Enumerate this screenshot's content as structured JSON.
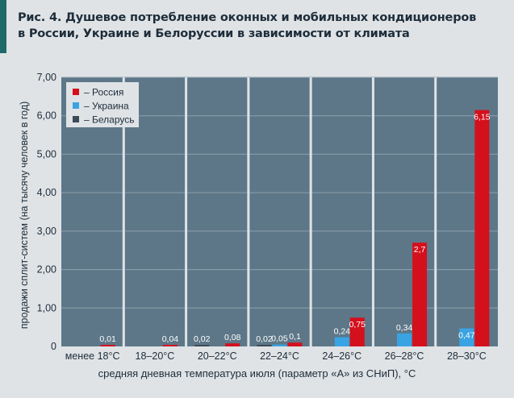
{
  "title": {
    "line1": "Рис. 4. Душевое потребление оконных и мобильных кондиционеров",
    "line2": "в России, Украине и Белоруссии в зависимости от климата"
  },
  "colors": {
    "background": "#dfe3e6",
    "plot_bg": "#5d7788",
    "accent": "#1f6a68"
  },
  "chart_data": {
    "type": "bar",
    "title": "Рис. 4. Душевое потребление оконных и мобильных кондиционеров в России, Украине и Белоруссии в зависимости от климата",
    "xlabel": "средняя дневная температура июля (параметр «А» из СНиП), °С",
    "ylabel": "продажи сплит-систем (на тысячу человек в год)",
    "ylim": [
      0,
      7
    ],
    "y_ticks": [
      "0",
      "1,00",
      "2,00",
      "3,00",
      "4,00",
      "5,00",
      "6,00",
      "7,00"
    ],
    "grid": "horizontal",
    "legend_position": "top-left",
    "categories": [
      "менее 18°С",
      "18–20°С",
      "20–22°С",
      "22–24°С",
      "24–26°С",
      "26–28°С",
      "28–30°С"
    ],
    "series": [
      {
        "name": "– Беларусь",
        "color": "#3c4a55",
        "values": [
          null,
          null,
          0.02,
          0.02,
          null,
          null,
          null
        ],
        "labels": [
          "",
          "",
          "0,02",
          "0,02",
          "",
          "",
          ""
        ]
      },
      {
        "name": "– Украина",
        "color": "#3aa3e3",
        "values": [
          null,
          null,
          null,
          0.05,
          0.24,
          0.34,
          0.47
        ],
        "labels": [
          "",
          "",
          "",
          "0,05",
          "0,24",
          "0,34",
          "0,47"
        ]
      },
      {
        "name": "– Россия",
        "color": "#d4101d",
        "values": [
          0.01,
          0.04,
          0.08,
          0.1,
          0.75,
          2.7,
          6.15
        ],
        "labels": [
          "0,01",
          "0,04",
          "0,08",
          "0,1",
          "0,75",
          "2,7",
          "6,15"
        ]
      }
    ],
    "legend_order": [
      2,
      1,
      0
    ]
  }
}
